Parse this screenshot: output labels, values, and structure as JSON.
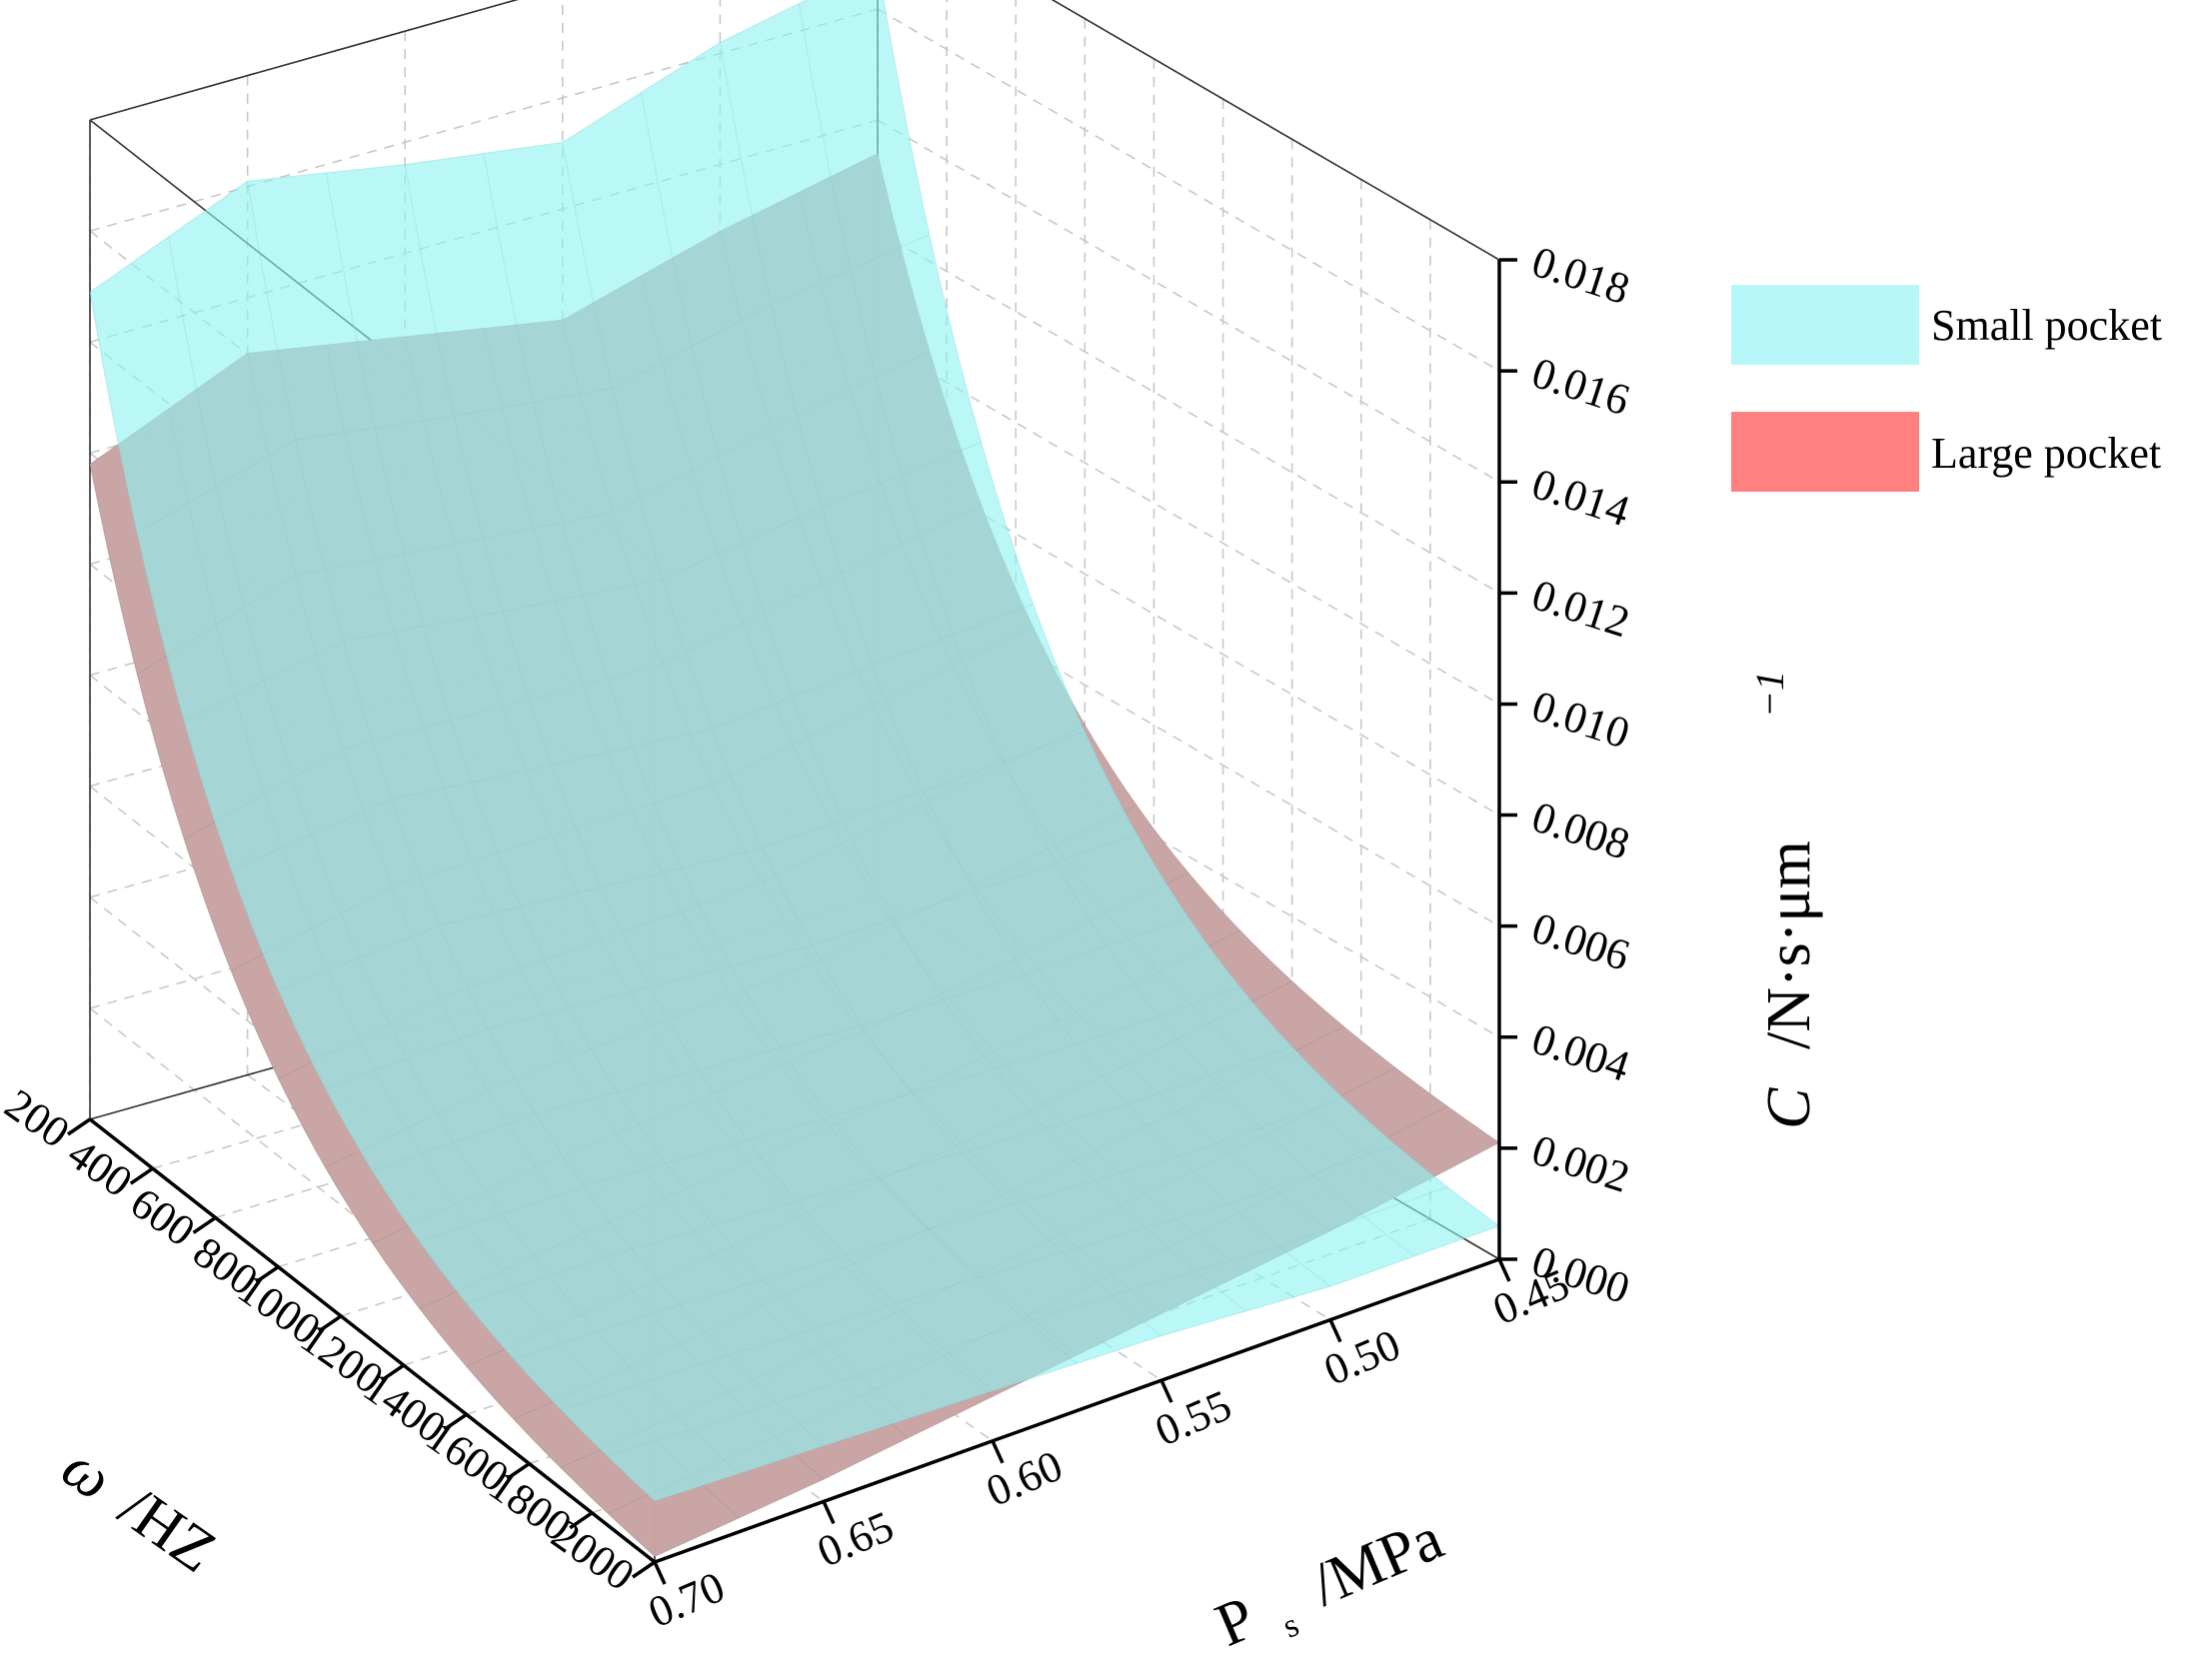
{
  "chart_data": {
    "type": "surface3d",
    "title": "",
    "x_axis": {
      "label_symbol": "ω",
      "label_unit": "/HZ",
      "ticks": [
        "200",
        "400",
        "600",
        "800",
        "1000",
        "1200",
        "1400",
        "1600",
        "1800",
        "2000"
      ],
      "range": [
        200,
        2000
      ]
    },
    "y_axis": {
      "label_main": "P",
      "label_sub": "s",
      "label_unit": "/MPa",
      "ticks": [
        "0.45",
        "0.50",
        "0.55",
        "0.60",
        "0.65",
        "0.70"
      ],
      "range": [
        0.45,
        0.7
      ]
    },
    "z_axis": {
      "label_symbol": "C",
      "label_unit": "/N·s·μm",
      "label_exp": "−1",
      "ticks": [
        "0.000",
        "0.002",
        "0.004",
        "0.006",
        "0.008",
        "0.010",
        "0.012",
        "0.014",
        "0.016",
        "0.018"
      ],
      "range": [
        0,
        0.018
      ]
    },
    "legend": {
      "position": "top-right",
      "items": [
        {
          "label": "Small pocket",
          "color": "#b8f7f7"
        },
        {
          "label": "Large pocket",
          "color": "#ff8080"
        }
      ]
    },
    "series": [
      {
        "name": "Small pocket",
        "color": "#8ff2f2",
        "omega": [
          200,
          2000
        ],
        "ps": [
          0.7,
          0.65,
          0.6,
          0.55,
          0.5,
          0.45
        ],
        "c_at_omega_200": [
          0.0149,
          0.0161,
          0.0156,
          0.0152,
          0.0162,
          0.0168
        ],
        "c_at_omega_2000": [
          0.0011,
          0.001,
          0.0009,
          0.0008,
          0.0006,
          0.0006
        ]
      },
      {
        "name": "Large pocket",
        "color": "#ff6464",
        "omega": [
          200,
          2000
        ],
        "ps": [
          0.7,
          0.65,
          0.6,
          0.55,
          0.5,
          0.45
        ],
        "c_at_omega_200": [
          0.0118,
          0.013,
          0.0125,
          0.012,
          0.0128,
          0.0134
        ],
        "c_at_omega_2000": [
          0.0001,
          0.0004,
          0.0008,
          0.0012,
          0.0016,
          0.0021
        ]
      }
    ]
  }
}
